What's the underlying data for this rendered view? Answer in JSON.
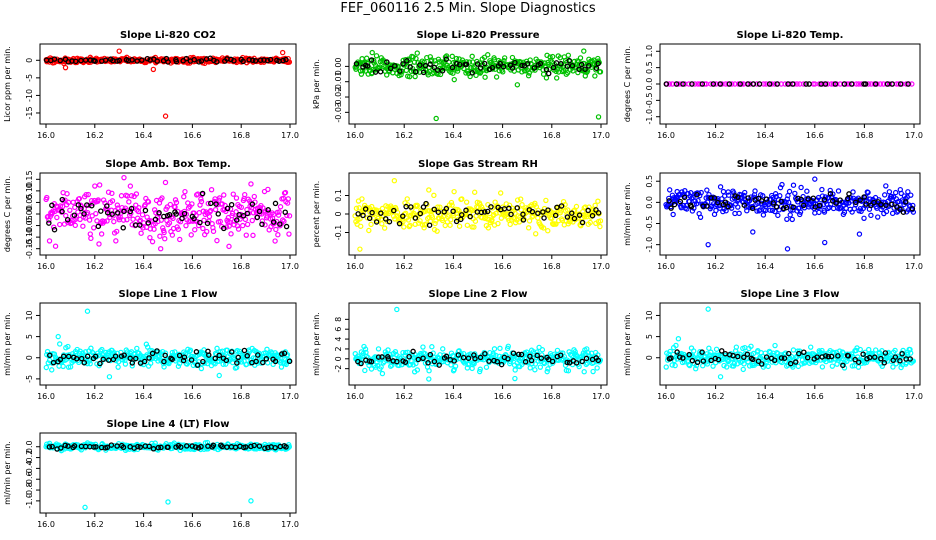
{
  "figure_title": "FEF_060116  2.5 Min. Slope Diagnostics",
  "chart_data": [
    {
      "id": "co2",
      "type": "scatter",
      "title": "Slope Li-820 CO2",
      "ylabel": "Licor ppm per min.",
      "xlim": [
        16.0,
        17.0
      ],
      "ylim": [
        -17,
        3.5
      ],
      "x_ticks": [
        "16.0",
        "16.2",
        "16.4",
        "16.6",
        "16.8",
        "17.0"
      ],
      "y_ticks": [
        0,
        -5,
        -10,
        -15
      ],
      "y_tick_labels": [
        "0",
        "-5",
        "-10",
        "-15"
      ],
      "color": "#ff0000",
      "spread": 0.6,
      "outliers": [
        [
          16.3,
          2.6
        ],
        [
          16.49,
          -15.9
        ],
        [
          16.44,
          -2.6
        ],
        [
          16.97,
          2.2
        ],
        [
          16.08,
          -2.1
        ]
      ]
    },
    {
      "id": "pressure",
      "type": "scatter",
      "title": "Slope Li-820 Pressure",
      "ylabel": "kPa per min.",
      "xlim": [
        16.0,
        17.0
      ],
      "ylim": [
        -0.035,
        0.012
      ],
      "x_ticks": [
        "16.0",
        "16.2",
        "16.4",
        "16.6",
        "16.8",
        "17.0"
      ],
      "y_ticks": [
        0.0,
        -0.01,
        -0.02,
        -0.03
      ],
      "y_tick_labels": [
        "0.00",
        "-0.01",
        "-0.02",
        "-0.03"
      ],
      "color": "#00c000",
      "spread": 0.006,
      "outliers": [
        [
          16.33,
          -0.034
        ],
        [
          16.99,
          -0.033
        ],
        [
          16.07,
          0.009
        ],
        [
          16.93,
          0.01
        ],
        [
          16.66,
          -0.012
        ]
      ]
    },
    {
      "id": "temp",
      "type": "scatter",
      "title": "Slope Li-820 Temp.",
      "ylabel": "degrees C per min.",
      "xlim": [
        16.0,
        17.0
      ],
      "ylim": [
        -1.1,
        1.1
      ],
      "x_ticks": [
        "16.0",
        "16.2",
        "16.4",
        "16.6",
        "16.8",
        "17.0"
      ],
      "y_ticks": [
        1.0,
        0.5,
        0.0,
        -0.5,
        -1.0
      ],
      "y_tick_labels": [
        "1.0",
        "0.5",
        "0.0",
        "-0.5",
        "-1.0"
      ],
      "color": "#ff00ff",
      "spread": 0.0,
      "outliers": []
    },
    {
      "id": "boxtemp",
      "type": "scatter",
      "title": "Slope Amb. Box Temp.",
      "ylabel": "degrees C per min.",
      "xlim": [
        16.0,
        17.0
      ],
      "ylim": [
        -0.16,
        0.16
      ],
      "x_ticks": [
        "16.0",
        "16.2",
        "16.4",
        "16.6",
        "16.8",
        "17.0"
      ],
      "y_ticks": [
        0.15,
        0.1,
        0.05,
        0.0,
        -0.05,
        -0.1,
        -0.15
      ],
      "y_tick_labels": [
        "0.15",
        "0.10",
        "0.05",
        "0.00",
        "-0.05",
        "-0.10",
        "-0.15"
      ],
      "color": "#ff00ff",
      "spread": 0.09,
      "outliers": [
        [
          16.47,
          -0.15
        ],
        [
          16.75,
          -0.14
        ],
        [
          16.84,
          0.13
        ]
      ]
    },
    {
      "id": "rh",
      "type": "scatter",
      "title": "Slope Gas Stream RH",
      "ylabel": "percent per min.",
      "xlim": [
        16.0,
        17.0
      ],
      "ylim": [
        -0.2,
        0.2
      ],
      "x_ticks": [
        "16.0",
        "16.2",
        "16.4",
        "16.6",
        "16.8",
        "17.0"
      ],
      "y_ticks": [
        0.1,
        0.0,
        -0.1
      ],
      "y_tick_labels": [
        "0.1",
        "0",
        "-0.1"
      ],
      "color": "#ffff00",
      "spread": 0.07,
      "outliers": [
        [
          16.02,
          -0.19
        ],
        [
          16.16,
          0.18
        ],
        [
          16.3,
          0.13
        ]
      ]
    },
    {
      "id": "sampleflow",
      "type": "scatter",
      "title": "Slope Sample Flow",
      "ylabel": "ml/min per min.",
      "xlim": [
        16.0,
        17.0
      ],
      "ylim": [
        -1.15,
        0.6
      ],
      "x_ticks": [
        "16.0",
        "16.2",
        "16.4",
        "16.6",
        "16.8",
        "17.0"
      ],
      "y_ticks": [
        0.5,
        0.0,
        -0.5,
        -1.0
      ],
      "y_tick_labels": [
        "0.5",
        "0.0",
        "-0.5",
        "-1.0"
      ],
      "color": "#0000ff",
      "spread": 0.28,
      "outliers": [
        [
          16.17,
          -1.0
        ],
        [
          16.49,
          -1.1
        ],
        [
          16.6,
          0.55
        ],
        [
          16.35,
          -0.7
        ],
        [
          16.78,
          -0.75
        ],
        [
          16.64,
          -0.95
        ]
      ]
    },
    {
      "id": "line1",
      "type": "scatter",
      "title": "Slope Line 1 Flow",
      "ylabel": "ml/min per min.",
      "xlim": [
        16.0,
        17.0
      ],
      "ylim": [
        -5.5,
        12
      ],
      "x_ticks": [
        "16.0",
        "16.2",
        "16.4",
        "16.6",
        "16.8",
        "17.0"
      ],
      "y_ticks": [
        10,
        5,
        0,
        -5
      ],
      "y_tick_labels": [
        "10",
        "5",
        "0",
        "-5"
      ],
      "color": "#00ffff",
      "spread": 2.0,
      "outliers": [
        [
          16.17,
          11
        ],
        [
          16.05,
          5
        ],
        [
          16.26,
          -4.5
        ],
        [
          16.71,
          -4.2
        ]
      ]
    },
    {
      "id": "line2",
      "type": "scatter",
      "title": "Slope Line 2 Flow",
      "ylabel": "ml/min per min.",
      "xlim": [
        16.0,
        17.0
      ],
      "ylim": [
        -4.5,
        10.5
      ],
      "x_ticks": [
        "16.0",
        "16.2",
        "16.4",
        "16.6",
        "16.8",
        "17.0"
      ],
      "y_ticks": [
        8,
        6,
        4,
        2,
        0,
        -2
      ],
      "y_tick_labels": [
        "8",
        "6",
        "4",
        "2",
        "0",
        "-2"
      ],
      "color": "#00ffff",
      "spread": 1.8,
      "outliers": [
        [
          16.17,
          10
        ],
        [
          16.3,
          -4.1
        ],
        [
          16.65,
          -4.0
        ]
      ]
    },
    {
      "id": "line3",
      "type": "scatter",
      "title": "Slope Line 3 Flow",
      "ylabel": "ml/min per min.",
      "xlim": [
        16.0,
        17.0
      ],
      "ylim": [
        -5.5,
        12
      ],
      "x_ticks": [
        "16.0",
        "16.2",
        "16.4",
        "16.6",
        "16.8",
        "17.0"
      ],
      "y_ticks": [
        10,
        5,
        0
      ],
      "y_tick_labels": [
        "10",
        "5",
        "0"
      ],
      "color": "#00ffff",
      "spread": 2.0,
      "outliers": [
        [
          16.17,
          11.5
        ],
        [
          16.22,
          -4.5
        ],
        [
          16.05,
          4.5
        ]
      ]
    },
    {
      "id": "line4",
      "type": "scatter",
      "title": "Slope Line 4 (LT) Flow",
      "ylabel": "ml/min per min.",
      "xlim": [
        16.0,
        17.0
      ],
      "ylim": [
        -1.15,
        0.18
      ],
      "x_ticks": [
        "16.0",
        "16.2",
        "16.4",
        "16.6",
        "16.8",
        "17.0"
      ],
      "y_ticks": [
        0.0,
        -0.2,
        -0.4,
        -0.6,
        -0.8,
        -1.0
      ],
      "y_tick_labels": [
        "0.0",
        "-0.2",
        "-0.4",
        "-0.6",
        "-0.8",
        "-1.0"
      ],
      "color": "#00ffff",
      "spread": 0.05,
      "outliers": [
        [
          16.16,
          -1.12
        ],
        [
          16.5,
          -1.02
        ],
        [
          16.84,
          -1.0
        ]
      ]
    }
  ]
}
